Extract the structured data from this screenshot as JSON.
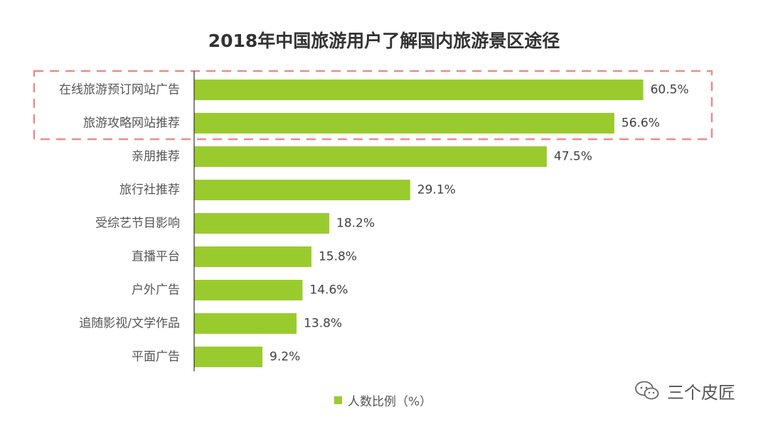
{
  "chart_data": {
    "type": "bar",
    "orientation": "horizontal",
    "title": "2018年中国旅游用户了解国内旅游景区途径",
    "categories": [
      "在线旅游预订网站广告",
      "旅游攻略网站推荐",
      "亲朋推荐",
      "旅行社推荐",
      "受综艺节目影响",
      "直播平台",
      "户外广告",
      "追随影视/文学作品",
      "平面广告"
    ],
    "series": [
      {
        "name": "人数比例（%）",
        "values": [
          60.5,
          56.6,
          47.5,
          29.1,
          18.2,
          15.8,
          14.6,
          13.8,
          9.2
        ],
        "value_labels": [
          "60.5%",
          "56.6%",
          "47.5%",
          "29.1%",
          "18.2%",
          "15.8%",
          "14.6%",
          "13.8%",
          "9.2%"
        ]
      }
    ],
    "xlim": [
      0,
      70
    ],
    "grid": false,
    "legend": "bottom-center",
    "highlighted_categories": [
      "在线旅游预订网站广告",
      "旅游攻略网站推荐"
    ],
    "colors": {
      "bar": "#9ACB2E",
      "highlight_box": "#EE8A8A",
      "axis": "#333333"
    }
  },
  "legend": {
    "label": "人数比例（%）"
  },
  "watermark": {
    "text": "三个皮匠",
    "icon": "wechat-bubble-icon"
  }
}
